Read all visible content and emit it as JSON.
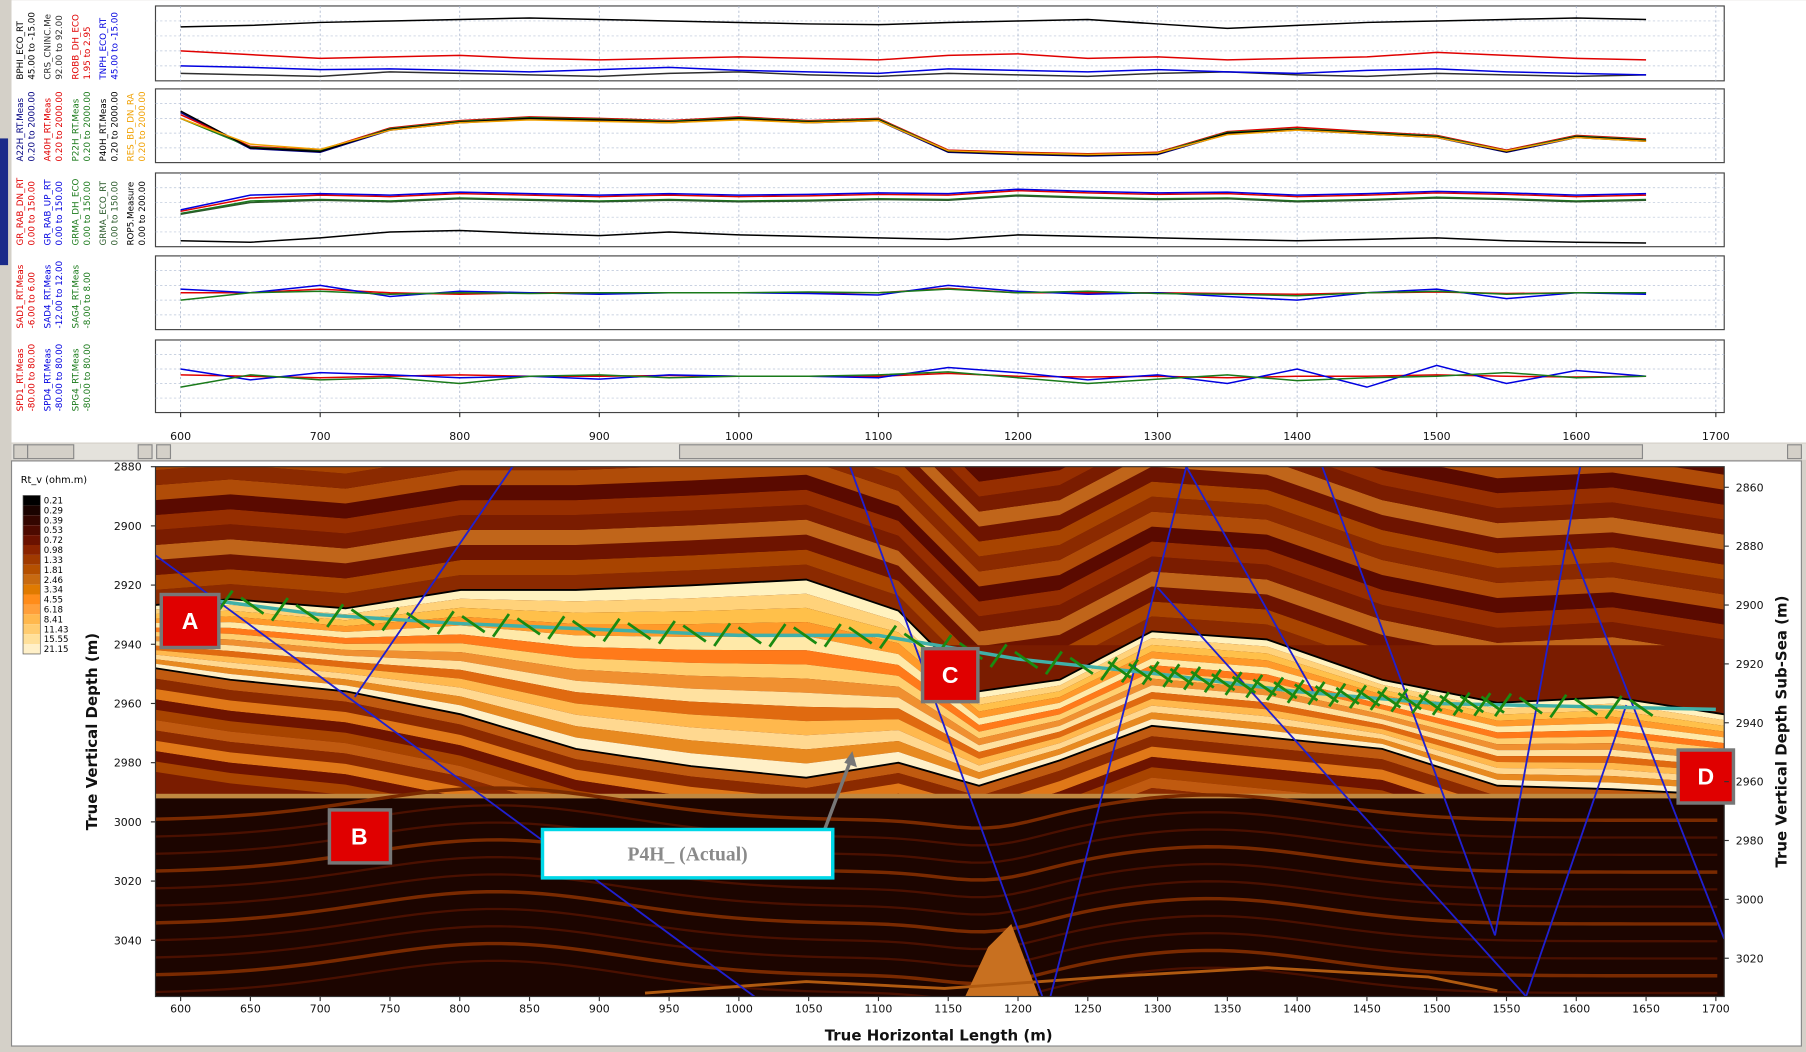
{
  "chart_data": [
    {
      "type": "line",
      "xlim": [
        582,
        1706
      ],
      "ylim": [
        0,
        100
      ],
      "x": [
        600,
        650,
        700,
        750,
        800,
        850,
        900,
        950,
        1000,
        1050,
        1100,
        1150,
        1200,
        1250,
        1300,
        1350,
        1400,
        1450,
        1500,
        1550,
        1600,
        1650
      ],
      "series": [
        {
          "name": "BPHI_ECO_RT",
          "range": "45.00 to -15.00",
          "color": "#000000",
          "values": [
            72,
            74,
            78,
            80,
            82,
            84,
            82,
            80,
            78,
            76,
            75,
            78,
            80,
            82,
            76,
            70,
            74,
            78,
            80,
            82,
            84,
            82
          ]
        },
        {
          "name": "CRS_CNINC.Me",
          "range": "92.00 to 92.00",
          "color": "#303030",
          "values": [
            10,
            8,
            6,
            12,
            10,
            8,
            6,
            10,
            12,
            8,
            6,
            10,
            8,
            6,
            10,
            12,
            8,
            6,
            10,
            8,
            6,
            8
          ]
        },
        {
          "name": "ROBB_DH_ECO",
          "range": "1.95 to 2.95",
          "color": "#e00000",
          "values": [
            40,
            35,
            30,
            32,
            34,
            30,
            28,
            30,
            32,
            30,
            28,
            34,
            36,
            30,
            32,
            28,
            30,
            32,
            38,
            34,
            30,
            28
          ]
        },
        {
          "name": "TNPH_ECO_RT",
          "range": "45.00 to -15.00",
          "color": "#0000e0",
          "values": [
            20,
            18,
            15,
            16,
            14,
            12,
            15,
            18,
            14,
            12,
            10,
            16,
            14,
            12,
            15,
            12,
            10,
            14,
            16,
            12,
            10,
            8
          ]
        }
      ]
    },
    {
      "type": "line",
      "xlim": [
        582,
        1706
      ],
      "ylim": [
        0,
        100
      ],
      "x": [
        600,
        650,
        700,
        750,
        800,
        850,
        900,
        950,
        1000,
        1050,
        1100,
        1150,
        1200,
        1250,
        1300,
        1350,
        1400,
        1450,
        1500,
        1550,
        1600,
        1650
      ],
      "series": [
        {
          "name": "A22H_RT.Meas",
          "range": "0.20 to 2000.00",
          "color": "#000080",
          "values": [
            68,
            19,
            14,
            44,
            54,
            59,
            57,
            54,
            59,
            54,
            57,
            14,
            11,
            9,
            11,
            39,
            44,
            39,
            34,
            14,
            34,
            29
          ]
        },
        {
          "name": "A40H_RT.Meas",
          "range": "0.20 to 2000.00",
          "color": "#e00000",
          "values": [
            65,
            22,
            17,
            47,
            57,
            62,
            60,
            57,
            62,
            57,
            60,
            17,
            14,
            12,
            14,
            42,
            48,
            42,
            37,
            17,
            37,
            32
          ]
        },
        {
          "name": "P22H_RT.Meas",
          "range": "0.20 to 2000.00",
          "color": "#1a7a1a",
          "values": [
            60,
            21,
            16,
            46,
            56,
            61,
            59,
            56,
            61,
            56,
            59,
            16,
            13,
            11,
            13,
            41,
            46,
            41,
            36,
            16,
            36,
            31
          ]
        },
        {
          "name": "P40H_RT.Meas",
          "range": "0.20 to 2000.00",
          "color": "#000000",
          "values": [
            70,
            20,
            15,
            45,
            55,
            60,
            58,
            55,
            60,
            55,
            58,
            15,
            12,
            10,
            12,
            40,
            45,
            40,
            35,
            15,
            35,
            30
          ]
        },
        {
          "name": "RES_BD_DN_RA",
          "range": "0.20 to 2000.00",
          "color": "#f0a000",
          "values": [
            60,
            25,
            18,
            44,
            54,
            58,
            56,
            54,
            58,
            54,
            57,
            16,
            13,
            11,
            13,
            38,
            44,
            39,
            34,
            16,
            34,
            29
          ]
        }
      ]
    },
    {
      "type": "line",
      "xlim": [
        582,
        1706
      ],
      "ylim": [
        0,
        100
      ],
      "x": [
        600,
        650,
        700,
        750,
        800,
        850,
        900,
        950,
        1000,
        1050,
        1100,
        1150,
        1200,
        1250,
        1300,
        1350,
        1400,
        1450,
        1500,
        1550,
        1600,
        1650
      ],
      "series": [
        {
          "name": "GR_RAB_DN_RT",
          "range": "0.00 to 150.00",
          "color": "#e00000",
          "values": [
            48,
            66,
            70,
            68,
            72,
            70,
            68,
            70,
            68,
            69,
            71,
            70,
            76,
            73,
            71,
            72,
            68,
            70,
            73,
            71,
            68,
            70
          ]
        },
        {
          "name": "GR_RAB_UP_RT",
          "range": "0.00 to 150.00",
          "color": "#0000e0",
          "values": [
            50,
            70,
            72,
            70,
            74,
            72,
            70,
            72,
            70,
            71,
            73,
            72,
            78,
            75,
            73,
            74,
            70,
            72,
            75,
            73,
            70,
            72
          ]
        },
        {
          "name": "GRMA_DH_ECO",
          "range": "0.00 to 150.00",
          "color": "#1a7a1a",
          "values": [
            45,
            62,
            64,
            62,
            66,
            64,
            62,
            64,
            62,
            63,
            65,
            64,
            70,
            67,
            65,
            66,
            62,
            64,
            67,
            65,
            62,
            64
          ]
        },
        {
          "name": "GRMA_ECO_RT",
          "range": "0.00 to 150.00",
          "color": "#2a5a2a",
          "values": [
            44,
            60,
            63,
            61,
            65,
            63,
            61,
            63,
            61,
            62,
            64,
            63,
            69,
            66,
            64,
            65,
            61,
            63,
            66,
            64,
            61,
            63
          ]
        },
        {
          "name": "ROP5.Measure",
          "range": "0.00 to 200.00",
          "color": "#000000",
          "values": [
            8,
            6,
            12,
            20,
            22,
            18,
            15,
            20,
            16,
            14,
            12,
            10,
            16,
            14,
            12,
            10,
            8,
            10,
            12,
            8,
            6,
            5
          ]
        }
      ]
    },
    {
      "type": "line",
      "xlim": [
        582,
        1706
      ],
      "ylim": [
        0,
        100
      ],
      "x": [
        600,
        650,
        700,
        750,
        800,
        850,
        900,
        950,
        1000,
        1050,
        1100,
        1150,
        1200,
        1250,
        1300,
        1350,
        1400,
        1450,
        1500,
        1550,
        1600,
        1650
      ],
      "series": [
        {
          "name": "SAD1_RT.Meas",
          "range": "-6.00 to 6.00",
          "color": "#e00000",
          "values": [
            50,
            50,
            55,
            50,
            48,
            50,
            50,
            50,
            50,
            50,
            50,
            56,
            50,
            50,
            50,
            49,
            48,
            50,
            51,
            49,
            50,
            50
          ]
        },
        {
          "name": "SAD4_RT.Meas",
          "range": "-12.00 to 12.00",
          "color": "#0000e0",
          "values": [
            55,
            50,
            60,
            45,
            52,
            50,
            48,
            50,
            50,
            49,
            47,
            60,
            52,
            48,
            50,
            45,
            40,
            50,
            55,
            42,
            50,
            48
          ]
        },
        {
          "name": "SAG4_RT.Meas",
          "range": "-8.00 to 8.00",
          "color": "#1a7a1a",
          "values": [
            40,
            50,
            52,
            48,
            50,
            49,
            50,
            50,
            50,
            51,
            50,
            55,
            50,
            52,
            49,
            48,
            46,
            50,
            52,
            48,
            50,
            50
          ]
        }
      ]
    },
    {
      "type": "line",
      "xlim": [
        582,
        1706
      ],
      "ylim": [
        0,
        100
      ],
      "xticks": [
        600,
        700,
        800,
        900,
        1000,
        1100,
        1200,
        1300,
        1400,
        1500,
        1600,
        1700
      ],
      "x": [
        600,
        650,
        700,
        750,
        800,
        850,
        900,
        950,
        1000,
        1050,
        1100,
        1150,
        1200,
        1250,
        1300,
        1350,
        1400,
        1450,
        1500,
        1550,
        1600,
        1650
      ],
      "series": [
        {
          "name": "SPD1_RT.Meas",
          "range": "-80.00 to 80.00",
          "color": "#e00000",
          "values": [
            52,
            50,
            48,
            50,
            52,
            50,
            50,
            51,
            50,
            50,
            50,
            54,
            50,
            49,
            50,
            48,
            50,
            50,
            52,
            50,
            49,
            50
          ]
        },
        {
          "name": "SPD4_RT.Meas",
          "range": "-80.00 to 80.00",
          "color": "#0000e0",
          "values": [
            60,
            45,
            55,
            52,
            48,
            50,
            46,
            52,
            50,
            50,
            48,
            62,
            55,
            45,
            52,
            40,
            60,
            35,
            65,
            40,
            58,
            50
          ]
        },
        {
          "name": "SPG4_RT.Meas",
          "range": "-80.00 to 80.00",
          "color": "#1a7a1a",
          "values": [
            35,
            52,
            45,
            48,
            40,
            50,
            52,
            48,
            50,
            50,
            52,
            56,
            48,
            40,
            46,
            52,
            44,
            48,
            50,
            55,
            48,
            50
          ]
        }
      ]
    },
    {
      "type": "cross-section",
      "xlabel": "True Horizontal Length (m)",
      "ylabel": "True Vertical Depth (m)",
      "y2label": "True Vertical Depth Sub-Sea (m)",
      "xlim": [
        582,
        1706
      ],
      "xticks": [
        600,
        650,
        700,
        750,
        800,
        850,
        900,
        950,
        1000,
        1050,
        1100,
        1150,
        1200,
        1250,
        1300,
        1350,
        1400,
        1450,
        1500,
        1550,
        1600,
        1650,
        1700
      ],
      "ylim": [
        2880,
        3059
      ],
      "yticks": [
        2880,
        2900,
        2920,
        2940,
        2960,
        2980,
        3000,
        3020,
        3040
      ],
      "y2lim": [
        2853,
        3033
      ],
      "y2ticks": [
        2860,
        2880,
        2900,
        2920,
        2940,
        2960,
        2980,
        3000,
        3020
      ],
      "legend": {
        "title": "Rt_v (ohm.m)",
        "labels": [
          0.21,
          0.29,
          0.39,
          0.53,
          0.72,
          0.98,
          1.33,
          1.81,
          2.46,
          3.34,
          4.55,
          6.18,
          8.41,
          11.43,
          15.55,
          21.15
        ],
        "colors": [
          "#000000",
          "#1a0300",
          "#330600",
          "#4d0a00",
          "#6b1200",
          "#8b2400",
          "#a03a00",
          "#b55000",
          "#c86a10",
          "#e07a00",
          "#ff8c1a",
          "#ff9f3a",
          "#ffb84d",
          "#ffcc70",
          "#ffe09a",
          "#fff0c8"
        ]
      },
      "well": {
        "name": "P4H_ (Actual)",
        "color": "#40b0a8",
        "x": [
          620,
          700,
          800,
          900,
          1000,
          1100,
          1200,
          1300,
          1400,
          1500,
          1600,
          1700
        ],
        "values": [
          2925,
          2930,
          2933,
          2935,
          2937,
          2937,
          2945,
          2950,
          2956,
          2960,
          2961,
          2962
        ]
      },
      "annotations": [
        "A",
        "B",
        "C",
        "D"
      ]
    }
  ]
}
